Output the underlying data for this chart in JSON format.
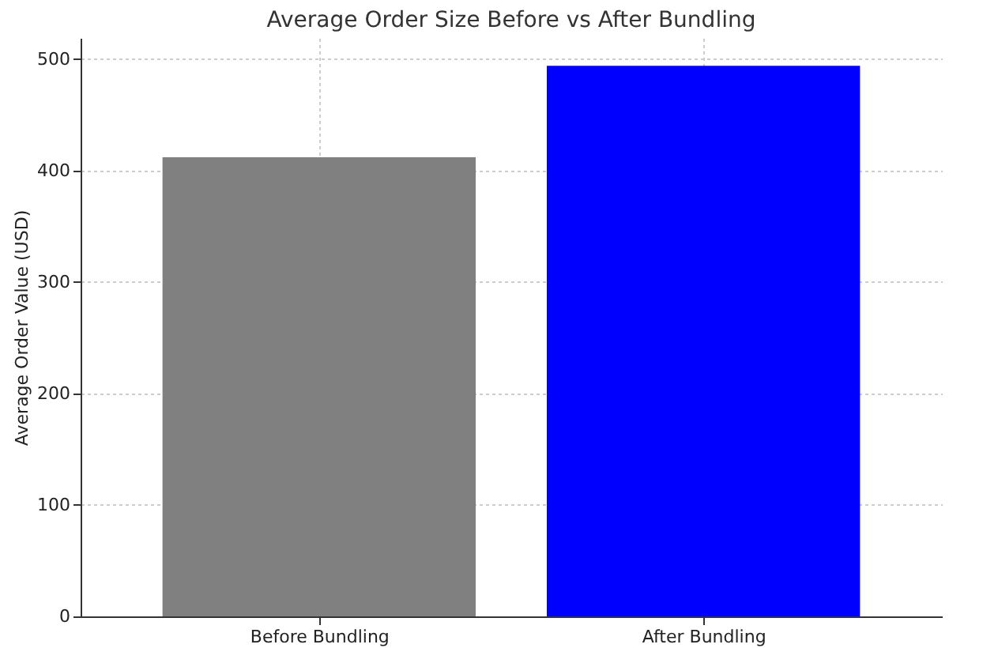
{
  "chart_data": {
    "type": "bar",
    "title": "Average Order Size Before vs After Bundling",
    "ylabel": "Average Order Value (USD)",
    "categories": [
      "Before Bundling",
      "After Bundling"
    ],
    "values": [
      412,
      494
    ],
    "colors": [
      "#808080",
      "#0000ff"
    ],
    "ylim": [
      0,
      519
    ],
    "yticks": [
      0,
      100,
      200,
      300,
      400,
      500
    ],
    "grid": true
  }
}
